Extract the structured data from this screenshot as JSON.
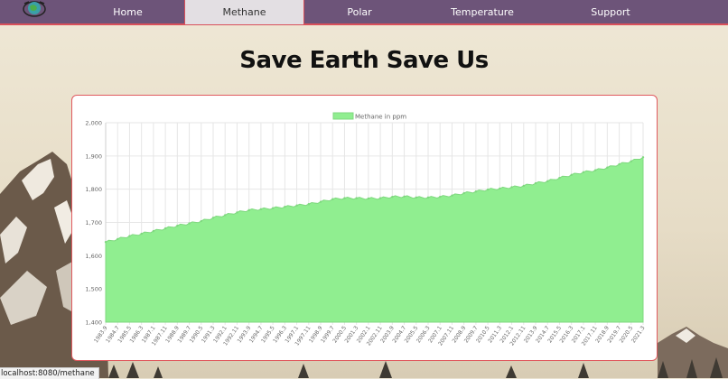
{
  "nav": {
    "items": [
      {
        "label": "Home"
      },
      {
        "label": "Methane",
        "active": true
      },
      {
        "label": "Polar"
      },
      {
        "label": "Temperature"
      },
      {
        "label": "Support"
      }
    ],
    "logo_icon": "earth-globe-icon",
    "bar_color": "#6d5479",
    "accent_color": "#d9505a"
  },
  "page_title": "Save Earth Save Us",
  "status_bar": {
    "url": "localhost:8080/methane"
  },
  "chart_data": {
    "type": "area",
    "legend_position": "top",
    "grid": true,
    "fill_color": "#90ee90",
    "ylim": [
      1400,
      2000
    ],
    "y_ticks": [
      "1,400",
      "1,500",
      "1,600",
      "1,700",
      "1,800",
      "1,900",
      "2,000"
    ],
    "x_tick_labels": [
      "1983.9",
      "1984.7",
      "1985.5",
      "1986.3",
      "1987.1",
      "1987.11",
      "1988.9",
      "1989.7",
      "1990.5",
      "1991.3",
      "1992.1",
      "1992.11",
      "1993.9",
      "1994.7",
      "1995.5",
      "1996.3",
      "1997.1",
      "1997.11",
      "1998.9",
      "1999.7",
      "2000.5",
      "2001.3",
      "2002.1",
      "2002.11",
      "2003.9",
      "2004.7",
      "2005.5",
      "2006.3",
      "2007.1",
      "2007.11",
      "2008.9",
      "2009.7",
      "2010.5",
      "2011.3",
      "2012.1",
      "2012.11",
      "2013.9",
      "2014.7",
      "2015.5",
      "2016.3",
      "2017.1",
      "2017.11",
      "2018.9",
      "2019.7",
      "2020.5",
      "2021.3"
    ],
    "series": [
      {
        "name": "Methane in ppm",
        "values": [
          1641,
          1650,
          1659,
          1666,
          1674,
          1682,
          1690,
          1697,
          1704,
          1714,
          1722,
          1730,
          1737,
          1740,
          1743,
          1747,
          1751,
          1755,
          1762,
          1770,
          1773,
          1773,
          1772,
          1773,
          1777,
          1778,
          1775,
          1775,
          1777,
          1781,
          1788,
          1793,
          1799,
          1802,
          1806,
          1810,
          1818,
          1824,
          1834,
          1843,
          1851,
          1857,
          1865,
          1875,
          1884,
          1896
        ]
      }
    ]
  }
}
